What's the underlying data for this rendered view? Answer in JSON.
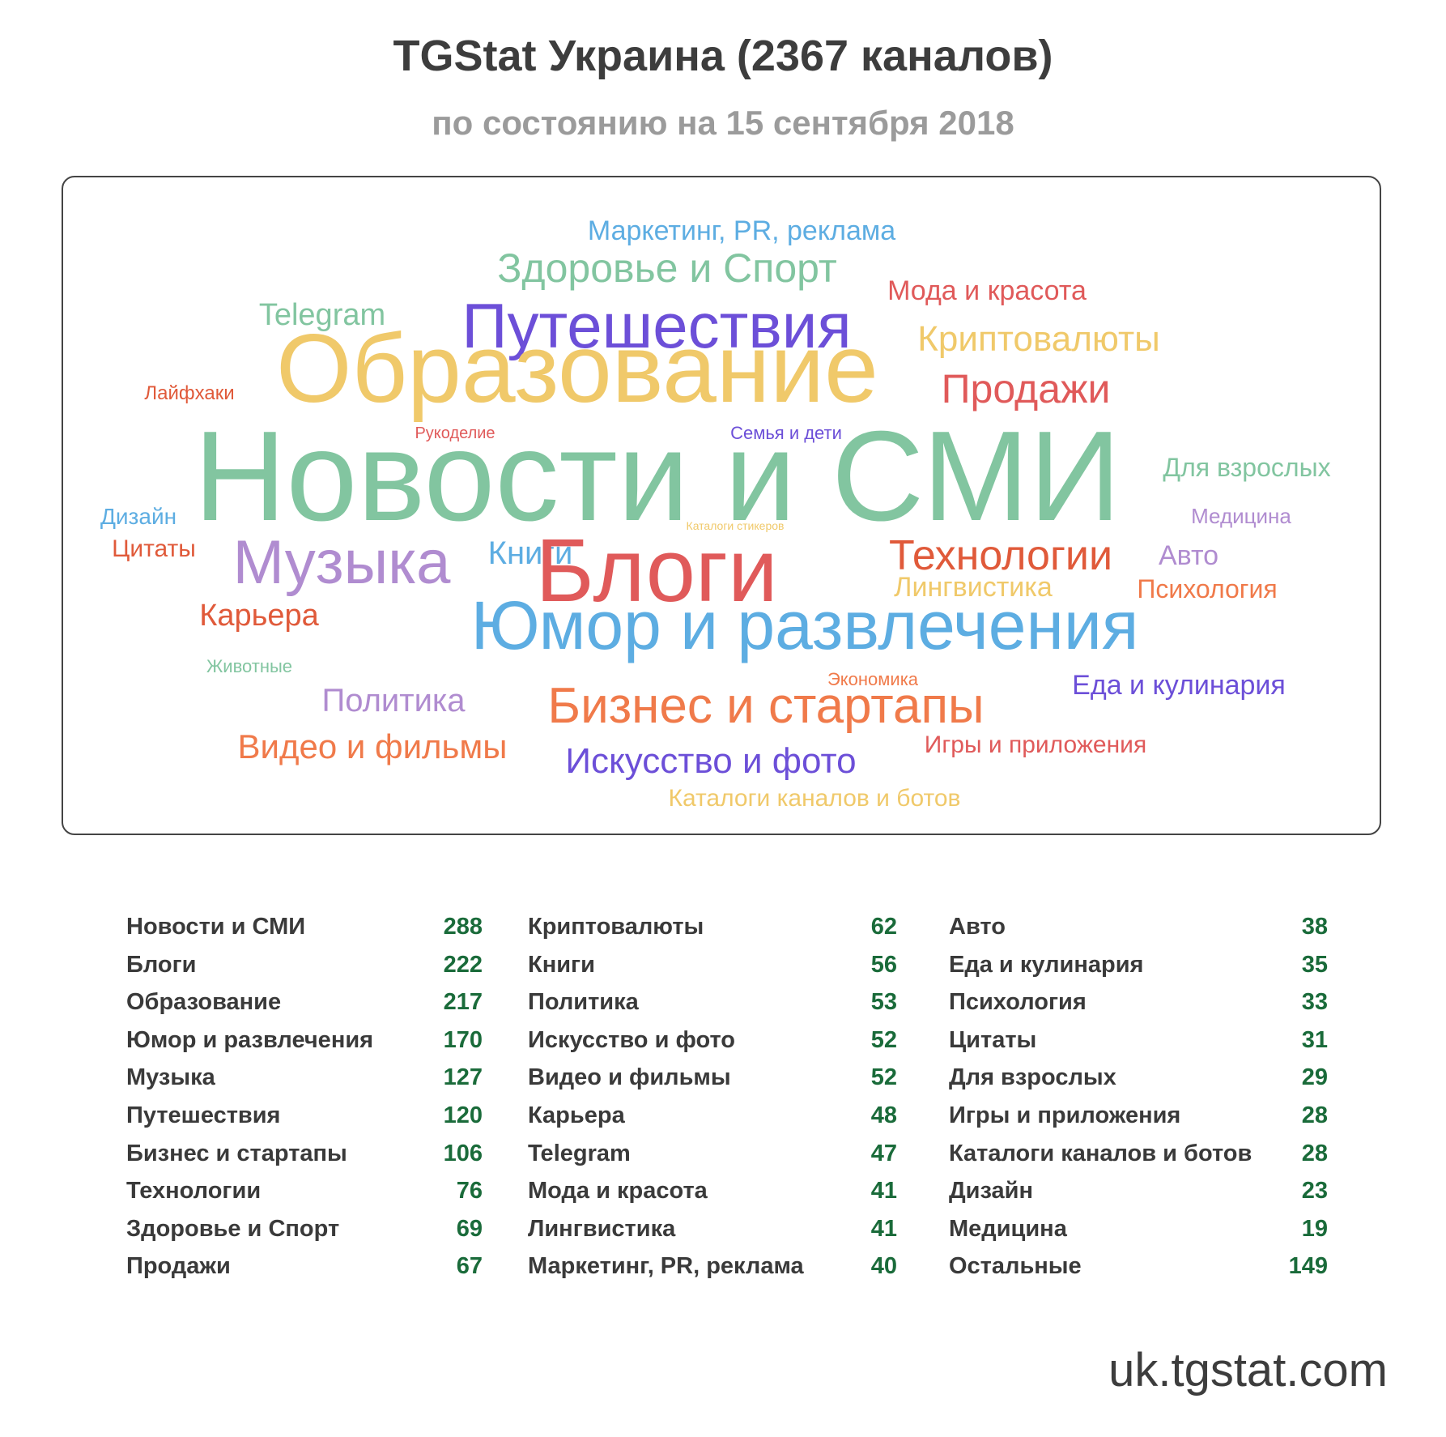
{
  "header": {
    "title": "TGStat Украина (2367 каналов)",
    "subtitle": "по состоянию на 15 сентября 2018"
  },
  "word_cloud": [
    {
      "text": "Маркетинг, PR, реклама",
      "color": "#5dade2"
    },
    {
      "text": "Здоровье и Спорт",
      "color": "#82c5a0"
    },
    {
      "text": "Мода и красота",
      "color": "#e05a5a"
    },
    {
      "text": "Telegram",
      "color": "#82c5a0"
    },
    {
      "text": "Путешествия",
      "color": "#6c4fd8"
    },
    {
      "text": "Криптовалюты",
      "color": "#f0c96a"
    },
    {
      "text": "Образование",
      "color": "#f0c96a"
    },
    {
      "text": "Продажи",
      "color": "#e05a5a"
    },
    {
      "text": "Лайфхаки",
      "color": "#e05a3a"
    },
    {
      "text": "Рукоделие",
      "color": "#e05a5a"
    },
    {
      "text": "Семья и дети",
      "color": "#6c4fd8"
    },
    {
      "text": "Новости и СМИ",
      "color": "#82c5a0"
    },
    {
      "text": "Для взрослых",
      "color": "#82c5a0"
    },
    {
      "text": "Дизайн",
      "color": "#5dade2"
    },
    {
      "text": "Медицина",
      "color": "#b08cd0"
    },
    {
      "text": "Каталоги стикеров",
      "color": "#f0c96a"
    },
    {
      "text": "Цитаты",
      "color": "#e05a3a"
    },
    {
      "text": "Музыка",
      "color": "#b08cd0"
    },
    {
      "text": "Книги",
      "color": "#5dade2"
    },
    {
      "text": "Блоги",
      "color": "#e05a5a"
    },
    {
      "text": "Технологии",
      "color": "#e05a3a"
    },
    {
      "text": "Авто",
      "color": "#b08cd0"
    },
    {
      "text": "Лингвистика",
      "color": "#f0c96a"
    },
    {
      "text": "Психология",
      "color": "#f07a4a"
    },
    {
      "text": "Карьера",
      "color": "#e05a3a"
    },
    {
      "text": "Юмор и развлечения",
      "color": "#5dade2"
    },
    {
      "text": "Животные",
      "color": "#82c5a0"
    },
    {
      "text": "Экономика",
      "color": "#f07a4a"
    },
    {
      "text": "Еда и кулинария",
      "color": "#6c4fd8"
    },
    {
      "text": "Политика",
      "color": "#b08cd0"
    },
    {
      "text": "Бизнес и стартапы",
      "color": "#f07a4a"
    },
    {
      "text": "Видео и фильмы",
      "color": "#f07a4a"
    },
    {
      "text": "Игры и приложения",
      "color": "#e05a5a"
    },
    {
      "text": "Искусство и фото",
      "color": "#6c4fd8"
    },
    {
      "text": "Каталоги каналов и ботов",
      "color": "#f0c96a"
    }
  ],
  "stats_columns": [
    [
      {
        "label": "Новости и СМИ",
        "count": "288"
      },
      {
        "label": "Блоги",
        "count": "222"
      },
      {
        "label": "Образование",
        "count": "217"
      },
      {
        "label": "Юмор и развлечения",
        "count": "170"
      },
      {
        "label": "Музыка",
        "count": "127"
      },
      {
        "label": "Путешествия",
        "count": "120"
      },
      {
        "label": "Бизнес и стартапы",
        "count": "106"
      },
      {
        "label": "Технологии",
        "count": "76"
      },
      {
        "label": "Здоровье и Спорт",
        "count": "69"
      },
      {
        "label": "Продажи",
        "count": "67"
      }
    ],
    [
      {
        "label": "Криптовалюты",
        "count": "62"
      },
      {
        "label": "Книги",
        "count": "56"
      },
      {
        "label": "Политика",
        "count": "53"
      },
      {
        "label": "Искусство и фото",
        "count": "52"
      },
      {
        "label": "Видео и фильмы",
        "count": "52"
      },
      {
        "label": "Карьера",
        "count": "48"
      },
      {
        "label": "Telegram",
        "count": "47"
      },
      {
        "label": "Мода и красота",
        "count": "41"
      },
      {
        "label": "Лингвистика",
        "count": "41"
      },
      {
        "label": "Маркетинг, PR, реклама",
        "count": "40"
      }
    ],
    [
      {
        "label": "Авто",
        "count": "38"
      },
      {
        "label": "Еда и кулинария",
        "count": "35"
      },
      {
        "label": "Психология",
        "count": "33"
      },
      {
        "label": "Цитаты",
        "count": "31"
      },
      {
        "label": "Для взрослых",
        "count": "29"
      },
      {
        "label": "Игры и приложения",
        "count": "28"
      },
      {
        "label": "Каталоги каналов и ботов",
        "count": "28"
      },
      {
        "label": "Дизайн",
        "count": "23"
      },
      {
        "label": "Медицина",
        "count": "19"
      },
      {
        "label": "Остальные",
        "count": "149"
      }
    ]
  ],
  "footer": {
    "url": "uk.tgstat.com"
  }
}
